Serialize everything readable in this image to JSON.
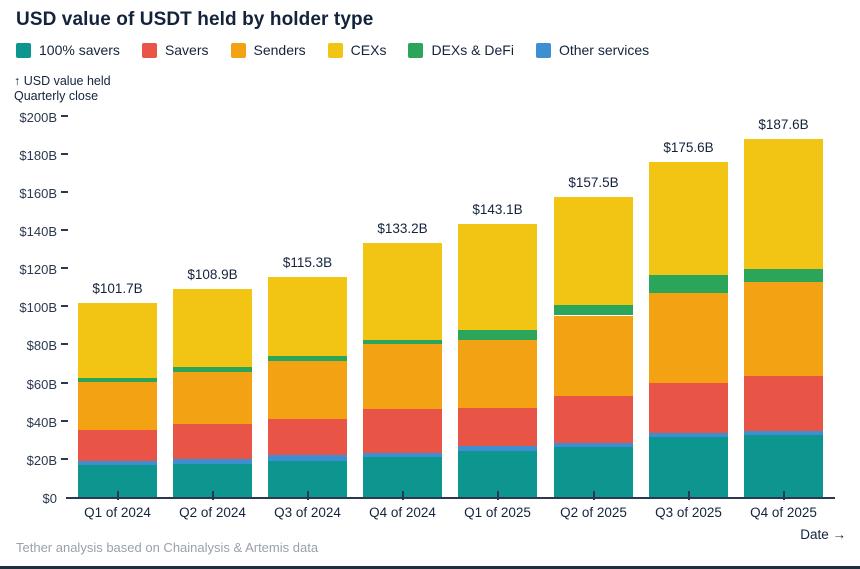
{
  "title": "USD value of USDT held by holder type",
  "axis_note": {
    "line1": "↑ USD value held",
    "line2": "Quarterly close"
  },
  "footer": {
    "source": "Tether analysis based on Chainalysis & Artemis data",
    "x_axis_label": "Date →"
  },
  "colors": {
    "text_dark": "#14233C",
    "axis_text": "#2A3950",
    "muted_text": "#9AA1A9",
    "axis_line": "#2A3950",
    "bottom_border": "#222E40",
    "background": "#FFFFFF"
  },
  "chart_data": {
    "type": "bar",
    "stacked": true,
    "title": "USD value of USDT held by holder type",
    "ylabel": "USD value held, quarterly close",
    "xlabel": "Date",
    "ylim": [
      0,
      200
    ],
    "grid": false,
    "legend_position": "top",
    "y_tick_values": [
      0,
      20,
      40,
      60,
      80,
      100,
      120,
      140,
      160,
      180,
      200
    ],
    "y_tick_labels": [
      "$0",
      "$20B",
      "$40B",
      "$60B",
      "$80B",
      "$100B",
      "$120B",
      "$140B",
      "$160B",
      "$180B",
      "$200B"
    ],
    "categories": [
      "Q1 of 2024",
      "Q2 of 2024",
      "Q3 of 2024",
      "Q4 of 2024",
      "Q1 of 2025",
      "Q2 of 2025",
      "Q3 of 2025",
      "Q4 of 2025"
    ],
    "totals_labels": [
      "$101.7B",
      "$108.9B",
      "$115.3B",
      "$133.2B",
      "$143.1B",
      "$157.5B",
      "$175.6B",
      "$187.6B"
    ],
    "totals_values": [
      101.7,
      108.9,
      115.3,
      133.2,
      143.1,
      157.5,
      175.6,
      187.6
    ],
    "series": [
      {
        "name": "100% savers",
        "color": "#0D9690",
        "values": [
          17.0,
          17.5,
          19.0,
          21.0,
          24.0,
          26.0,
          31.3,
          32.7
        ]
      },
      {
        "name": "Savers",
        "color": "#E85546",
        "values": [
          16.5,
          18.5,
          19.0,
          23.2,
          19.5,
          24.5,
          26.1,
          28.7
        ]
      },
      {
        "name": "Senders",
        "color": "#F2A213",
        "values": [
          24.9,
          27.0,
          30.5,
          33.7,
          36.0,
          42.2,
          47.3,
          49.3
        ]
      },
      {
        "name": "CEXs",
        "color": "#F2C414",
        "values": [
          39.1,
          40.8,
          41.2,
          50.6,
          55.6,
          56.8,
          59.0,
          67.9
        ]
      },
      {
        "name": "DEXs & DeFi",
        "color": "#2BA55A",
        "values": [
          2.4,
          2.6,
          2.8,
          2.6,
          5.0,
          5.5,
          9.6,
          7.0
        ]
      },
      {
        "name": "Other services",
        "color": "#3D8FD1",
        "values": [
          1.8,
          2.5,
          2.8,
          2.1,
          3.0,
          2.5,
          2.3,
          2.1
        ]
      }
    ],
    "stack_order": [
      "100% savers",
      "Other services",
      "Savers",
      "Senders",
      "DEXs & DeFi",
      "CEXs"
    ]
  }
}
